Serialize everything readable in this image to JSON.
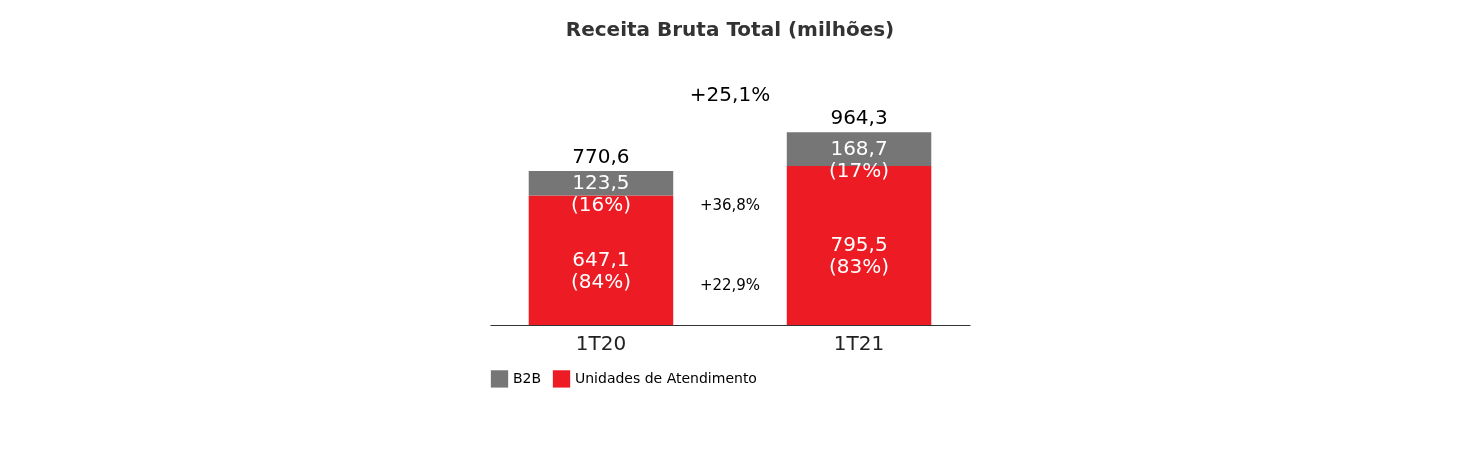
{
  "chart_data": {
    "type": "bar",
    "title": "Receita Bruta Total (milhões)",
    "categories": [
      "1T20",
      "1T21"
    ],
    "stacked": true,
    "legend": "bottom",
    "series": [
      {
        "name": "Unidades de Atendimento",
        "color": "#ed1c24",
        "values": [
          647.1,
          795.5
        ],
        "value_labels": [
          "647,1 (84%)",
          "795,5 (83%)"
        ]
      },
      {
        "name": "B2B",
        "color": "#767676",
        "values": [
          123.5,
          168.7
        ],
        "value_labels": [
          "123,5 (16%)",
          "168,7 (17%)"
        ]
      }
    ],
    "totals": [
      "770,6",
      "964,3"
    ],
    "annotations": [
      "+25,1%",
      "+36,8%",
      "+22,9%"
    ]
  }
}
